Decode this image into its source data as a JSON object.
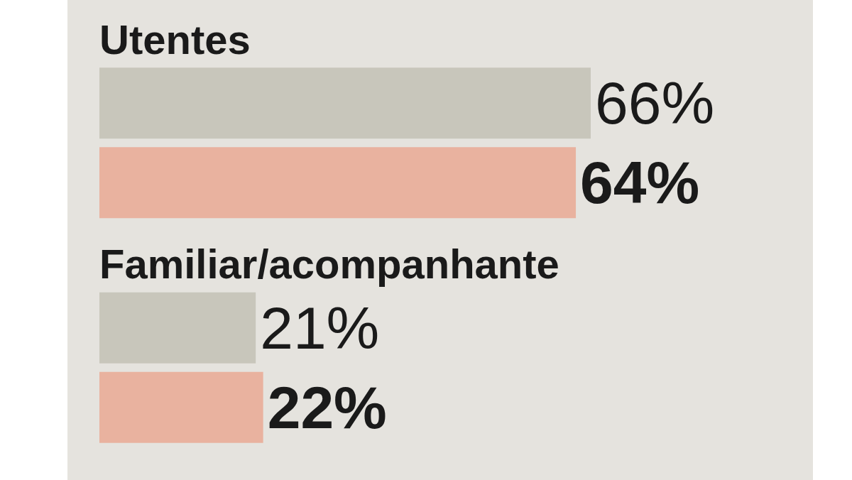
{
  "chart_data": {
    "type": "bar",
    "orientation": "horizontal",
    "categories": [
      "Utentes",
      "Familiar/acompanhante"
    ],
    "series": [
      {
        "color": "#c8c6bb",
        "values": [
          66,
          21
        ],
        "value_labels": [
          "66%",
          "21%"
        ]
      },
      {
        "color": "#e9b29f",
        "values": [
          64,
          22
        ],
        "value_labels": [
          "64%",
          "22%"
        ]
      }
    ],
    "tick_labels": false
  }
}
